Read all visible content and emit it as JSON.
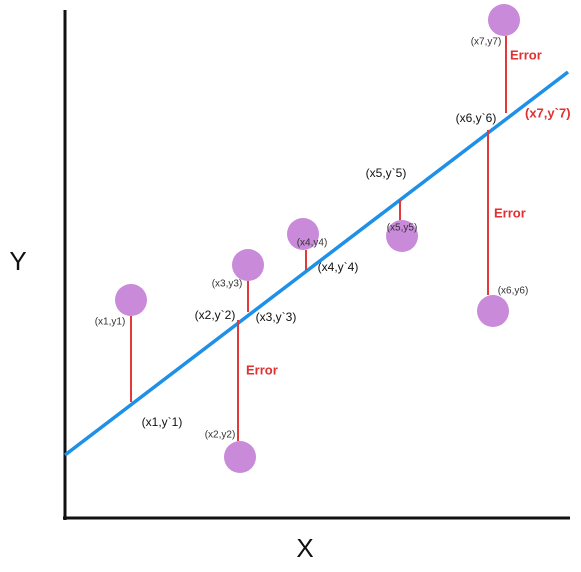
{
  "axes": {
    "x_label": "X",
    "y_label": "Y"
  },
  "points": [
    {
      "label": "(x1,y1)",
      "predicted_label": "(x1,y`1)"
    },
    {
      "label": "(x2,y2)",
      "predicted_label": "(x2,y`2)"
    },
    {
      "label": "(x3,y3)",
      "predicted_label": "(x3,y`3)"
    },
    {
      "label": "(x4,y4)",
      "predicted_label": "(x4,y`4)"
    },
    {
      "label": "(x5,y5)",
      "predicted_label": "(x5,y`5)"
    },
    {
      "label": "(x6,y6)",
      "predicted_label": "(x6,y`6)"
    },
    {
      "label": "(x7,y7)",
      "predicted_label": "(x7,y`7)"
    }
  ],
  "error_labels": [
    "Error",
    "Error",
    "Error"
  ]
}
